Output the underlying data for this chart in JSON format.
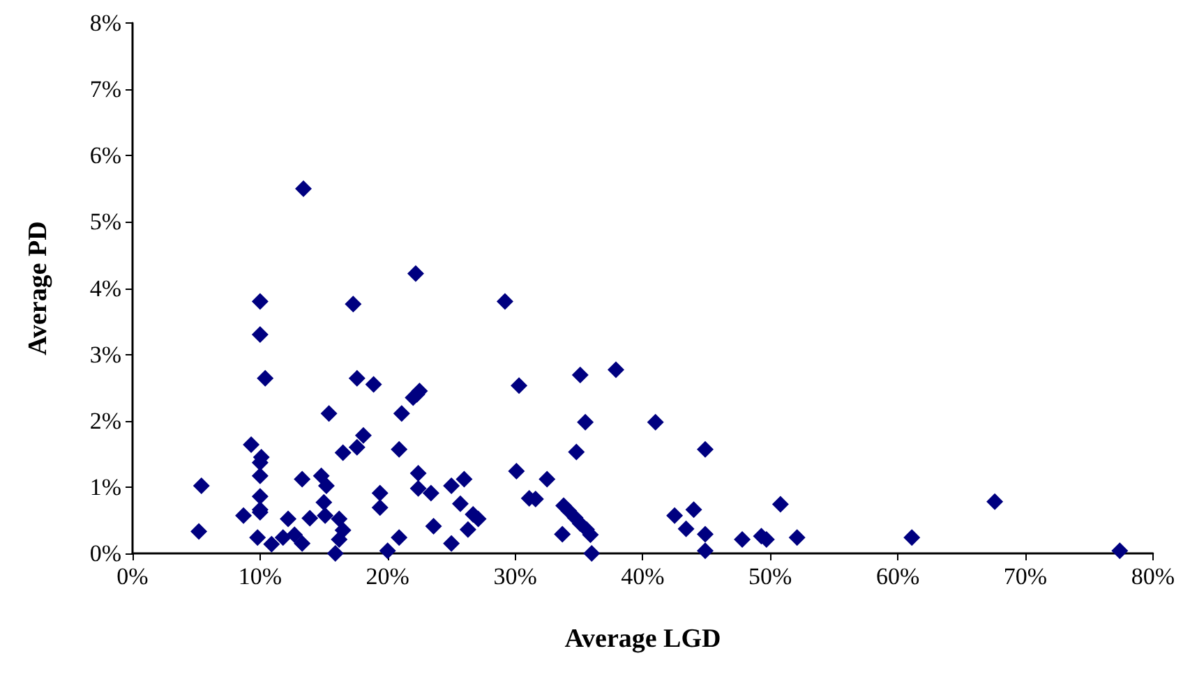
{
  "chart_data": {
    "type": "scatter",
    "xlabel": "Average LGD",
    "ylabel": "Average PD",
    "marker": "diamond",
    "grid": false,
    "xlim": [
      0,
      80
    ],
    "ylim": [
      0,
      8
    ],
    "xticks": [
      {
        "value": 0,
        "label": "0%"
      },
      {
        "value": 10,
        "label": "10%"
      },
      {
        "value": 20,
        "label": "20%"
      },
      {
        "value": 30,
        "label": "30%"
      },
      {
        "value": 40,
        "label": "40%"
      },
      {
        "value": 50,
        "label": "50%"
      },
      {
        "value": 60,
        "label": "60%"
      },
      {
        "value": 70,
        "label": "70%"
      },
      {
        "value": 80,
        "label": "80%"
      }
    ],
    "yticks": [
      {
        "value": 0,
        "label": "0%"
      },
      {
        "value": 1,
        "label": "1%"
      },
      {
        "value": 2,
        "label": "2%"
      },
      {
        "value": 3,
        "label": "3%"
      },
      {
        "value": 4,
        "label": "4%"
      },
      {
        "value": 5,
        "label": "5%"
      },
      {
        "value": 6,
        "label": "6%"
      },
      {
        "value": 7,
        "label": "7%"
      },
      {
        "value": 8,
        "label": "8%"
      }
    ],
    "series": [
      {
        "color": "#000080",
        "x": [
          13.4,
          10.0,
          17.3,
          10.0,
          10.4,
          17.6,
          18.9,
          15.4,
          18.1,
          17.6,
          16.5,
          9.3,
          10.1,
          10.0,
          10.0,
          5.4,
          13.3,
          14.8,
          15.2,
          15.0,
          10.0,
          19.4,
          19.4,
          8.7,
          10.0,
          10.0,
          13.9,
          15.1,
          16.2,
          12.2,
          5.2,
          9.8,
          10.9,
          11.8,
          12.7,
          13.3,
          16.5,
          16.2,
          15.9,
          20.0,
          22.2,
          29.2,
          30.3,
          22.5,
          22.0,
          22.3,
          21.1,
          20.9,
          22.4,
          30.1,
          22.4,
          23.4,
          26.0,
          25.0,
          25.7,
          26.7,
          27.1,
          26.3,
          23.6,
          20.9,
          25.0,
          31.1,
          35.1,
          37.9,
          35.5,
          41.0,
          34.8,
          32.5,
          31.6,
          33.8,
          34.2,
          34.7,
          35.1,
          35.6,
          35.9,
          33.7,
          36.0,
          44.9,
          42.5,
          44.0,
          43.4,
          44.9,
          44.9,
          47.8,
          49.3,
          49.7,
          50.8,
          52.1,
          61.1,
          67.6,
          77.4
        ],
        "values": [
          5.5,
          3.8,
          3.76,
          3.3,
          2.64,
          2.64,
          2.55,
          2.11,
          1.78,
          1.6,
          1.52,
          1.64,
          1.45,
          1.37,
          1.17,
          1.02,
          1.12,
          1.17,
          1.02,
          0.77,
          0.86,
          0.91,
          0.69,
          0.57,
          0.62,
          0.66,
          0.53,
          0.57,
          0.52,
          0.52,
          0.33,
          0.24,
          0.14,
          0.24,
          0.28,
          0.15,
          0.35,
          0.21,
          0.0,
          0.04,
          4.22,
          3.8,
          2.53,
          2.45,
          2.35,
          2.4,
          2.11,
          1.57,
          1.21,
          1.24,
          0.98,
          0.91,
          1.12,
          1.02,
          0.75,
          0.59,
          0.52,
          0.36,
          0.41,
          0.24,
          0.15,
          0.83,
          2.69,
          2.77,
          1.98,
          1.98,
          1.53,
          1.12,
          0.82,
          0.72,
          0.64,
          0.54,
          0.45,
          0.36,
          0.28,
          0.29,
          0.0,
          1.57,
          0.57,
          0.66,
          0.37,
          0.29,
          0.04,
          0.21,
          0.26,
          0.21,
          0.74,
          0.24,
          0.24,
          0.78,
          0.04
        ]
      }
    ]
  }
}
